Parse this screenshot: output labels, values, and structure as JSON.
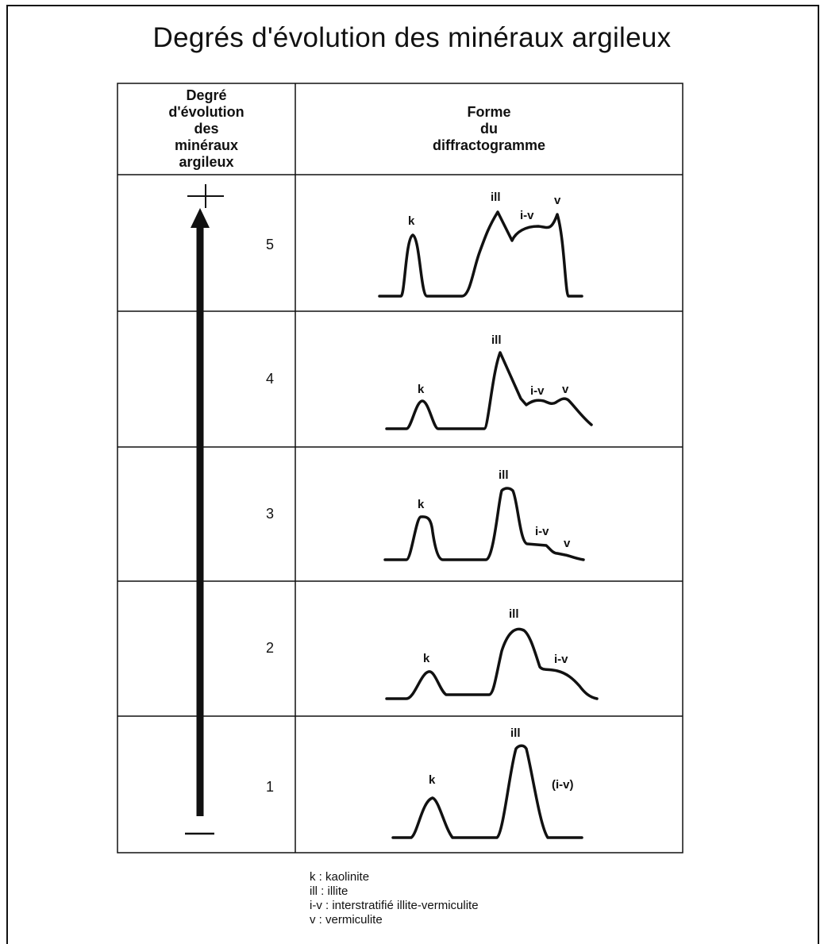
{
  "title": "Degrés d'évolution des minéraux argileux",
  "header": {
    "col1": [
      "Degré",
      "d'évolution",
      "des",
      "minéraux",
      "argileux"
    ],
    "col2": [
      "Forme",
      "du",
      "diffractogramme"
    ]
  },
  "arrow": {
    "top_label": "+",
    "bottom_label": "—"
  },
  "rows": [
    {
      "degree": "5",
      "peaks": {
        "k": "k",
        "ill": "ill",
        "iv": "i-v",
        "v": "v"
      }
    },
    {
      "degree": "4",
      "peaks": {
        "k": "k",
        "ill": "ill",
        "iv": "i-v",
        "v": "v"
      }
    },
    {
      "degree": "3",
      "peaks": {
        "k": "k",
        "ill": "ill",
        "iv": "i-v",
        "v": "v"
      }
    },
    {
      "degree": "2",
      "peaks": {
        "k": "k",
        "ill": "ill",
        "iv": "i-v"
      }
    },
    {
      "degree": "1",
      "peaks": {
        "k": "k",
        "ill": "ill",
        "iv": "(i-v)"
      }
    }
  ],
  "legend": [
    "k : kaolinite",
    "ill : illite",
    "i-v : interstratifié illite-vermiculite",
    "v : vermiculite"
  ]
}
